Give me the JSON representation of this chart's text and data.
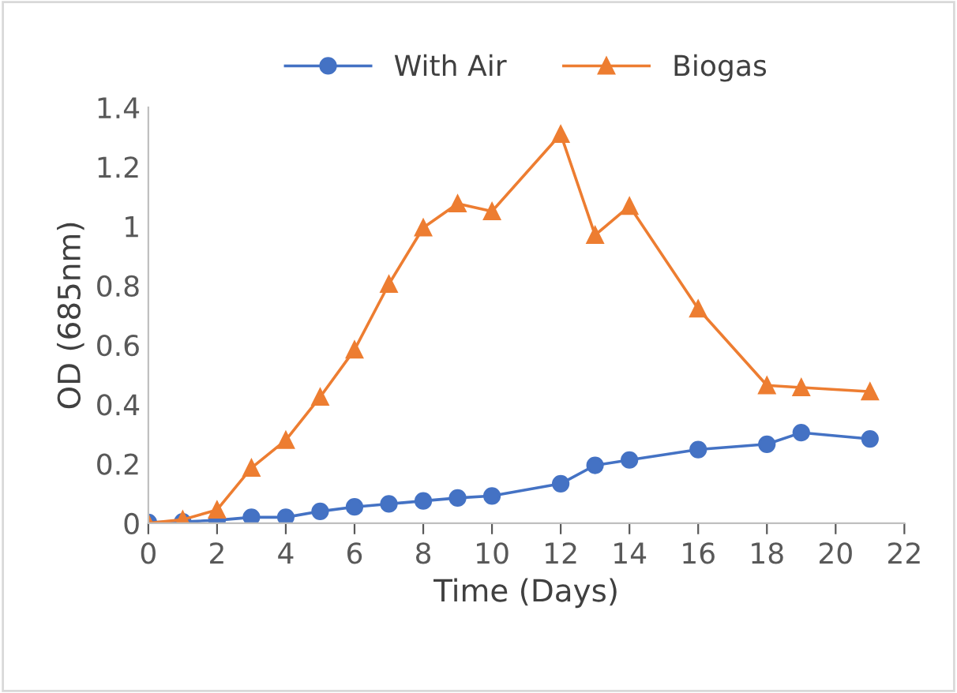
{
  "chart_data": {
    "type": "line",
    "xlabel": "Time (Days)",
    "ylabel": "OD (685nm)",
    "xlim": [
      0,
      22
    ],
    "xticks": [
      0,
      2,
      4,
      6,
      8,
      10,
      12,
      14,
      16,
      18,
      20,
      22
    ],
    "ylim": [
      0,
      1.4
    ],
    "yticks": [
      0,
      0.2,
      0.4,
      0.6,
      0.8,
      1,
      1.2,
      1.4
    ],
    "grid": false,
    "legend": "top",
    "x": [
      0,
      1,
      2,
      3,
      4,
      5,
      6,
      7,
      8,
      9,
      10,
      12,
      13,
      14,
      16,
      18,
      19,
      21
    ],
    "series": [
      {
        "name": "With Air",
        "color": "#4472c4",
        "marker": "circle",
        "values": [
          0.003,
          0.005,
          0.01,
          0.02,
          0.02,
          0.04,
          0.055,
          0.065,
          0.075,
          0.085,
          0.092,
          0.133,
          0.195,
          0.213,
          0.248,
          0.266,
          0.305,
          0.284
        ]
      },
      {
        "name": "Biogas",
        "color": "#ed7d31",
        "marker": "triangle",
        "values": [
          0.0,
          0.012,
          0.045,
          0.186,
          0.28,
          0.425,
          0.584,
          0.805,
          0.995,
          1.076,
          1.05,
          1.31,
          0.97,
          1.068,
          0.722,
          0.464,
          0.457,
          0.443
        ]
      }
    ]
  }
}
